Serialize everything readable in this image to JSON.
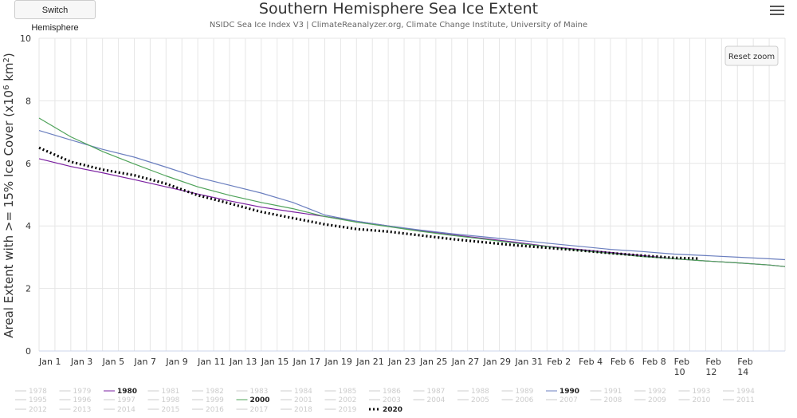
{
  "header": {
    "switch_label": "Switch Hemisphere",
    "title": "Southern Hemisphere Sea Ice Extent",
    "subtitle": "NSIDC Sea Ice Index V3 | ClimateReanalyzer.org, Climate Change Institute, University of Maine",
    "menu_icon": "hamburger-menu-icon",
    "reset_zoom_label": "Reset zoom"
  },
  "chart_data": {
    "type": "line",
    "title": "Southern Hemisphere Sea Ice Extent",
    "ylabel": "Areal Extent with >= 15% Ice Cover (x10⁶ km²)",
    "xlabel": "",
    "ylim": [
      0,
      10
    ],
    "yticks": [
      "0",
      "2",
      "4",
      "6",
      "8",
      "10"
    ],
    "xlim": [
      1,
      48
    ],
    "xticks": [
      {
        "day": 1,
        "label": [
          "Jan 1"
        ]
      },
      {
        "day": 3,
        "label": [
          "Jan 3"
        ]
      },
      {
        "day": 5,
        "label": [
          "Jan 5"
        ]
      },
      {
        "day": 7,
        "label": [
          "Jan 7"
        ]
      },
      {
        "day": 9,
        "label": [
          "Jan 9"
        ]
      },
      {
        "day": 11,
        "label": [
          "Jan 11"
        ]
      },
      {
        "day": 13,
        "label": [
          "Jan 13"
        ]
      },
      {
        "day": 15,
        "label": [
          "Jan 15"
        ]
      },
      {
        "day": 17,
        "label": [
          "Jan 17"
        ]
      },
      {
        "day": 19,
        "label": [
          "Jan 19"
        ]
      },
      {
        "day": 21,
        "label": [
          "Jan 21"
        ]
      },
      {
        "day": 23,
        "label": [
          "Jan 23"
        ]
      },
      {
        "day": 25,
        "label": [
          "Jan 25"
        ]
      },
      {
        "day": 27,
        "label": [
          "Jan 27"
        ]
      },
      {
        "day": 29,
        "label": [
          "Jan 29"
        ]
      },
      {
        "day": 31,
        "label": [
          "Jan 31"
        ]
      },
      {
        "day": 33,
        "label": [
          "Feb 2"
        ]
      },
      {
        "day": 35,
        "label": [
          "Feb 4"
        ]
      },
      {
        "day": 37,
        "label": [
          "Feb 6"
        ]
      },
      {
        "day": 39,
        "label": [
          "Feb 8"
        ]
      },
      {
        "day": 41,
        "label": [
          "Feb",
          "10"
        ]
      },
      {
        "day": 43,
        "label": [
          "Feb",
          "12"
        ]
      },
      {
        "day": 45,
        "label": [
          "Feb",
          "14"
        ]
      }
    ],
    "grid": true,
    "series": [
      {
        "name": "1980",
        "color": "#7a1fa0",
        "dash": "",
        "width": 1.2,
        "x": [
          1,
          3,
          5,
          7,
          9,
          11,
          13,
          15,
          17,
          19,
          21,
          23,
          25,
          27,
          29,
          31,
          33,
          35,
          37,
          39,
          41,
          43,
          45,
          47,
          48
        ],
        "y": [
          6.15,
          5.9,
          5.7,
          5.48,
          5.25,
          5.02,
          4.8,
          4.6,
          4.45,
          4.3,
          4.15,
          4.0,
          3.85,
          3.72,
          3.6,
          3.48,
          3.35,
          3.25,
          3.15,
          3.05,
          2.95,
          2.88,
          2.82,
          2.75,
          2.7
        ]
      },
      {
        "name": "1990",
        "color": "#6b7fbf",
        "dash": "",
        "width": 1.2,
        "x": [
          1,
          3,
          5,
          7,
          9,
          11,
          13,
          15,
          17,
          19,
          21,
          23,
          25,
          27,
          29,
          31,
          33,
          35,
          37,
          39,
          41,
          43,
          45,
          47,
          48
        ],
        "y": [
          7.05,
          6.75,
          6.45,
          6.2,
          5.88,
          5.55,
          5.3,
          5.05,
          4.75,
          4.35,
          4.15,
          4.0,
          3.87,
          3.75,
          3.65,
          3.55,
          3.45,
          3.35,
          3.25,
          3.18,
          3.1,
          3.05,
          3.0,
          2.95,
          2.92
        ]
      },
      {
        "name": "2000",
        "color": "#4fa35a",
        "dash": "",
        "width": 1.2,
        "x": [
          1,
          3,
          5,
          7,
          9,
          11,
          13,
          15,
          17,
          19,
          21,
          23,
          25,
          27,
          29,
          31,
          33,
          35,
          37,
          39,
          41,
          43,
          45,
          47,
          48
        ],
        "y": [
          7.45,
          6.85,
          6.38,
          5.98,
          5.6,
          5.25,
          4.98,
          4.75,
          4.55,
          4.3,
          4.12,
          3.98,
          3.83,
          3.7,
          3.58,
          3.45,
          3.34,
          3.22,
          3.12,
          3.02,
          2.95,
          2.88,
          2.82,
          2.75,
          2.7
        ]
      },
      {
        "name": "2020",
        "color": "#000000",
        "dash": "2,3",
        "width": 3.2,
        "x": [
          1,
          3,
          5,
          7,
          9,
          11,
          13,
          15,
          17,
          19,
          21,
          23,
          25,
          27,
          29,
          31,
          33,
          35,
          37,
          39,
          41,
          42.5
        ],
        "y": [
          6.5,
          6.05,
          5.8,
          5.62,
          5.35,
          4.98,
          4.72,
          4.45,
          4.25,
          4.05,
          3.9,
          3.82,
          3.7,
          3.58,
          3.48,
          3.38,
          3.3,
          3.22,
          3.13,
          3.05,
          2.98,
          2.96
        ]
      }
    ],
    "legend": {
      "rows": [
        [
          "1978",
          "1979",
          "1980",
          "1981",
          "1982",
          "1983",
          "1984",
          "1985",
          "1986",
          "1987",
          "1988",
          "1989",
          "1990",
          "1991",
          "1992",
          "1993",
          "1994"
        ],
        [
          "1995",
          "1996",
          "1997",
          "1998",
          "1999",
          "2000",
          "2001",
          "2002",
          "2003",
          "2004",
          "2005",
          "2006",
          "2007",
          "2008",
          "2009",
          "2010",
          "2011"
        ],
        [
          "2012",
          "2013",
          "2014",
          "2015",
          "2016",
          "2017",
          "2018",
          "2019",
          "2020"
        ]
      ],
      "active": [
        "1980",
        "1990",
        "2000",
        "2020"
      ],
      "inactive_color": "#cccccc"
    }
  }
}
